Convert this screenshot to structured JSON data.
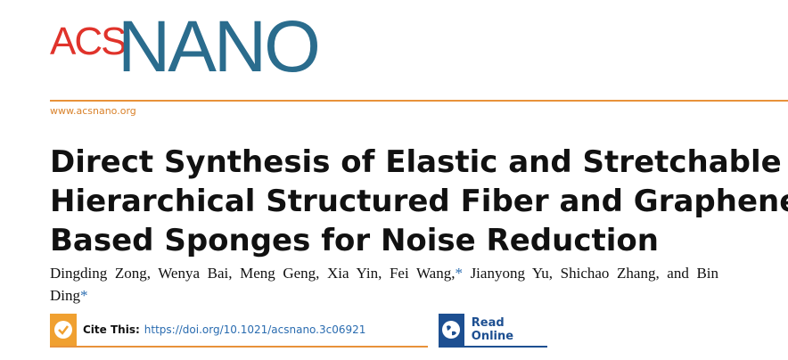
{
  "journal": {
    "logo_left": "ACS",
    "logo_right": "NANO",
    "url": "www.acsnano.org"
  },
  "article": {
    "title_lines": [
      "Direct Synthesis of Elastic and Stretchable",
      "Hierarchical Structured Fiber and Graphene-",
      "Based Sponges for Noise Reduction"
    ],
    "authors": [
      "Dingding Zong, Wenya Bai, Meng Geng, Xia Yin, Fei Wang,",
      "*",
      "Jianyong Yu, Shichao Zhang, and Bin Ding",
      "*"
    ]
  },
  "links": {
    "cite_label": "Cite This:",
    "doi": "https://doi.org/10.1021/acsnano.3c06921",
    "read_online": "Read Online"
  }
}
